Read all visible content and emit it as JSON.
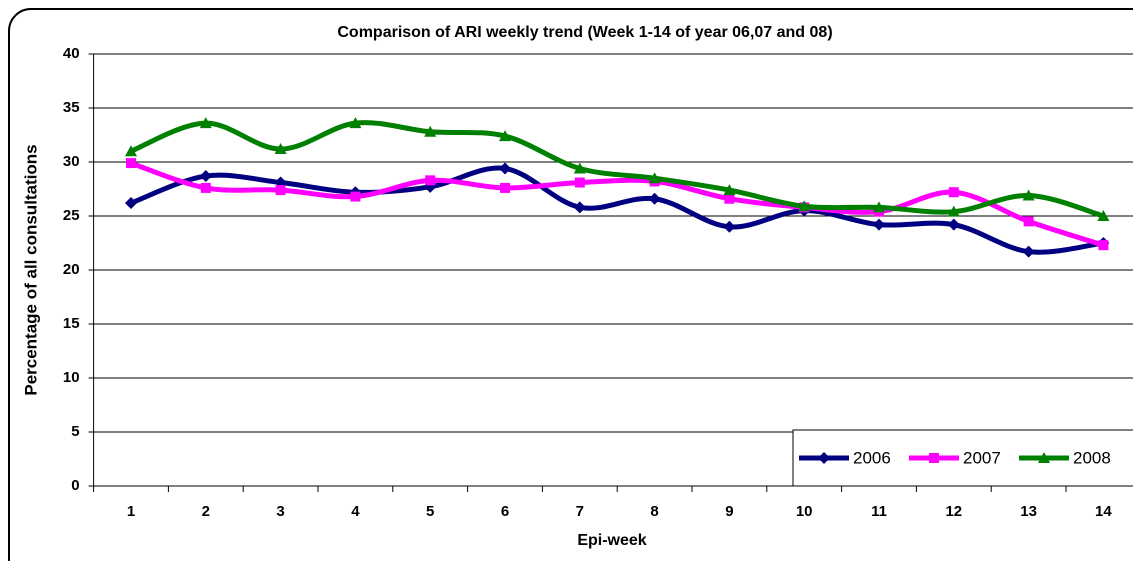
{
  "chart_data": {
    "type": "line",
    "title": "Comparison of ARI weekly trend (Week 1-14 of year 06,07 and 08)",
    "x_label": "Epi-week",
    "y_label": "Percentage of all consultations",
    "categories": [
      "1",
      "2",
      "3",
      "4",
      "5",
      "6",
      "7",
      "8",
      "9",
      "10",
      "11",
      "12",
      "13",
      "14"
    ],
    "series": [
      {
        "name": "2006",
        "color": "#000080",
        "marker": "diamond",
        "values": [
          26.2,
          28.7,
          28.1,
          27.2,
          27.7,
          29.4,
          25.8,
          26.6,
          24.0,
          25.5,
          24.2,
          24.2,
          21.7,
          22.5
        ]
      },
      {
        "name": "2007",
        "color": "#ff00ff",
        "marker": "square",
        "values": [
          29.9,
          27.6,
          27.4,
          26.8,
          28.3,
          27.6,
          28.1,
          28.2,
          26.6,
          25.8,
          25.4,
          27.2,
          24.5,
          22.3
        ]
      },
      {
        "name": "2008",
        "color": "#008000",
        "marker": "triangle",
        "values": [
          31.0,
          33.6,
          31.2,
          33.6,
          32.8,
          32.4,
          29.4,
          28.5,
          27.4,
          25.9,
          25.8,
          25.4,
          26.9,
          25.0
        ]
      }
    ],
    "ylim": [
      0,
      40
    ],
    "yticks": [
      0,
      5,
      10,
      15,
      20,
      25,
      30,
      35,
      40
    ],
    "grid": true,
    "smooth": true,
    "legend": "bottom-right"
  }
}
